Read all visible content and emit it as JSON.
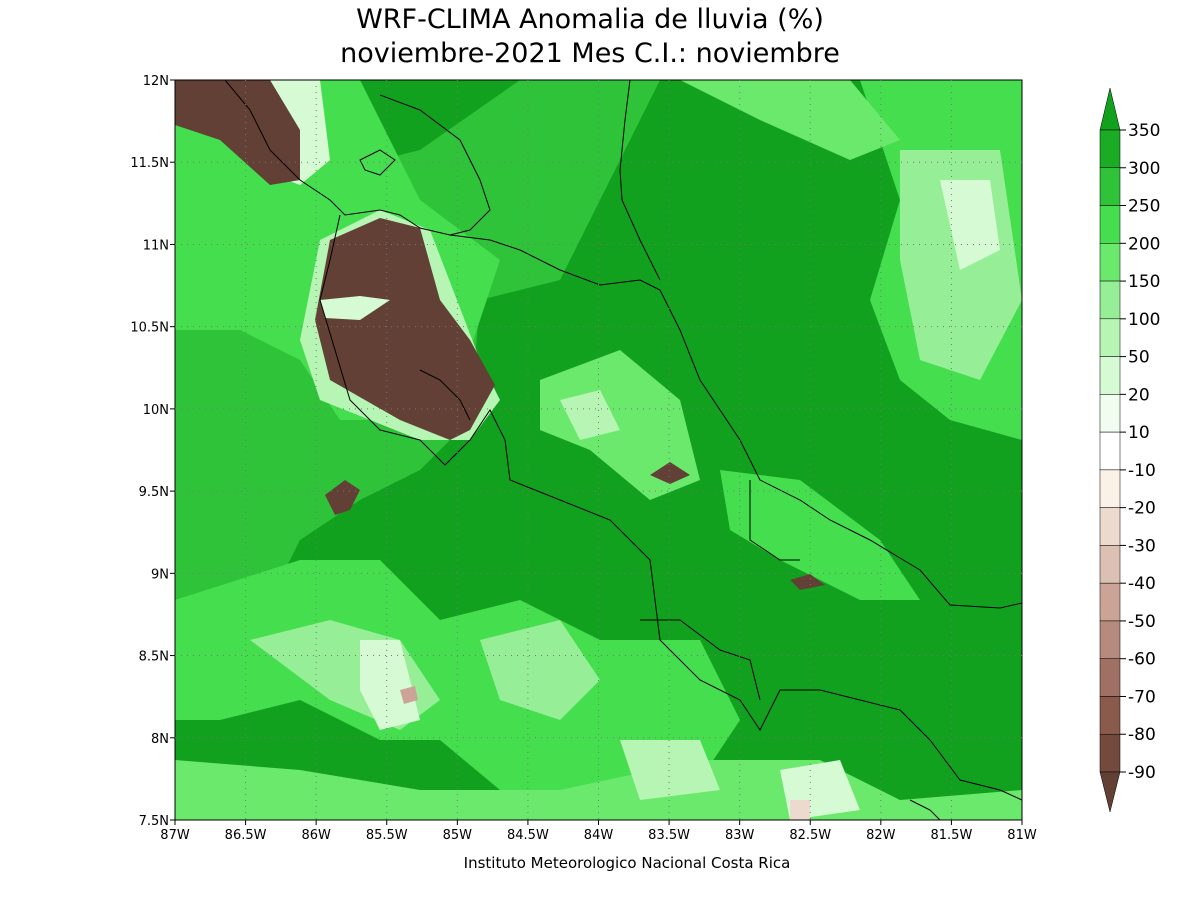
{
  "header": {
    "title": [
      "WRF-CLIMA Anomalia de lluvia (%)",
      "noviembre-2021 Mes C.I.: noviembre"
    ]
  },
  "map": {
    "lon_ticks": [
      "87W",
      "86.5W",
      "86W",
      "85.5W",
      "85W",
      "84.5W",
      "84W",
      "83.5W",
      "83W",
      "82.5W",
      "82W",
      "81.5W",
      "81W"
    ],
    "lat_ticks": [
      "12N",
      "11.5N",
      "11N",
      "10.5N",
      "10N",
      "9.5N",
      "9N",
      "8.5N",
      "8N",
      "7.5N"
    ]
  },
  "colorbar": {
    "levels": [
      350,
      300,
      250,
      200,
      150,
      100,
      50,
      20,
      10,
      -10,
      -20,
      -30,
      -40,
      -50,
      -60,
      -70,
      -80,
      -90
    ],
    "colors": [
      "#12a11e",
      "#1aac24",
      "#2fc33a",
      "#45de4e",
      "#6be96d",
      "#96ef96",
      "#b6f5b4",
      "#d6fad4",
      "#f0fdef",
      "#ffffff",
      "#faf1e7",
      "#ecdacf",
      "#ddc0b4",
      "#cba497",
      "#b68a7d",
      "#a07064",
      "#8a5a4d",
      "#744a3d",
      "#624035"
    ]
  },
  "footer": "Instituto Meteorologico Nacional Costa Rica"
}
